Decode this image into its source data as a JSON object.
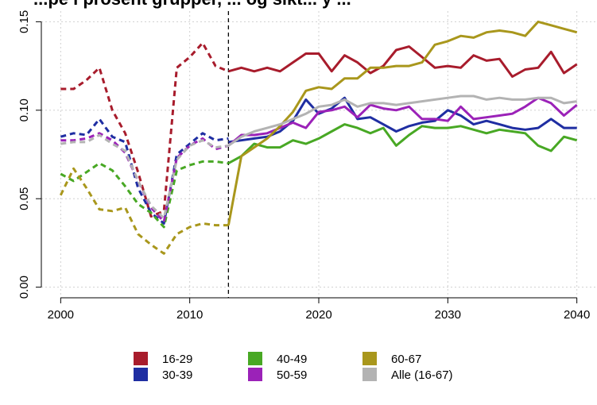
{
  "chart_data": {
    "type": "line",
    "title": "...pe i prosent grupper, ... og sikt... y ...",
    "xlabel": "",
    "ylabel": "",
    "xlim": [
      1998.5,
      2041.5
    ],
    "ylim": [
      -0.006,
      0.156
    ],
    "x_ticks": [
      2000,
      2010,
      2020,
      2030,
      2040
    ],
    "y_ticks": [
      0.0,
      0.05,
      0.1,
      0.15
    ],
    "y_tick_labels": [
      "0.00",
      "0.05",
      "0.10",
      "0.15"
    ],
    "grid": true,
    "vline_x": 2013,
    "legend_position": "bottom",
    "series": [
      {
        "name": "16-29",
        "color": "#a81c2c",
        "historical": {
          "x": [
            2000,
            2001,
            2002,
            2003,
            2004,
            2005,
            2006,
            2007,
            2008,
            2009,
            2010,
            2011,
            2012,
            2013
          ],
          "y": [
            0.112,
            0.112,
            0.117,
            0.124,
            0.1,
            0.087,
            0.065,
            0.04,
            0.043,
            0.124,
            0.13,
            0.138,
            0.125,
            0.122
          ]
        },
        "projection": {
          "x": [
            2013,
            2014,
            2015,
            2016,
            2017,
            2018,
            2019,
            2020,
            2021,
            2022,
            2023,
            2024,
            2025,
            2026,
            2027,
            2028,
            2029,
            2030,
            2031,
            2032,
            2033,
            2034,
            2035,
            2036,
            2037,
            2038,
            2039,
            2040
          ],
          "y": [
            0.122,
            0.124,
            0.122,
            0.124,
            0.122,
            0.127,
            0.132,
            0.132,
            0.122,
            0.131,
            0.127,
            0.121,
            0.125,
            0.134,
            0.136,
            0.13,
            0.124,
            0.125,
            0.124,
            0.131,
            0.128,
            0.129,
            0.119,
            0.123,
            0.124,
            0.133,
            0.121,
            0.126
          ]
        }
      },
      {
        "name": "30-39",
        "color": "#1f2ea2",
        "historical": {
          "x": [
            2000,
            2001,
            2002,
            2003,
            2004,
            2005,
            2006,
            2007,
            2008,
            2009,
            2010,
            2011,
            2012,
            2013
          ],
          "y": [
            0.085,
            0.087,
            0.086,
            0.095,
            0.085,
            0.082,
            0.056,
            0.042,
            0.036,
            0.075,
            0.081,
            0.087,
            0.083,
            0.084
          ]
        },
        "projection": {
          "x": [
            2013,
            2014,
            2015,
            2016,
            2017,
            2018,
            2019,
            2020,
            2021,
            2022,
            2023,
            2024,
            2025,
            2026,
            2027,
            2028,
            2029,
            2030,
            2031,
            2032,
            2033,
            2034,
            2035,
            2036,
            2037,
            2038,
            2039,
            2040
          ],
          "y": [
            0.082,
            0.083,
            0.084,
            0.085,
            0.088,
            0.094,
            0.106,
            0.098,
            0.101,
            0.107,
            0.095,
            0.096,
            0.092,
            0.088,
            0.091,
            0.093,
            0.094,
            0.1,
            0.097,
            0.092,
            0.094,
            0.092,
            0.09,
            0.089,
            0.09,
            0.095,
            0.09,
            0.09
          ]
        }
      },
      {
        "name": "40-49",
        "color": "#48a824",
        "historical": {
          "x": [
            2000,
            2001,
            2002,
            2003,
            2004,
            2005,
            2006,
            2007,
            2008,
            2009,
            2010,
            2011,
            2012,
            2013
          ],
          "y": [
            0.064,
            0.06,
            0.065,
            0.07,
            0.066,
            0.057,
            0.047,
            0.042,
            0.034,
            0.066,
            0.069,
            0.071,
            0.071,
            0.07
          ]
        },
        "projection": {
          "x": [
            2013,
            2014,
            2015,
            2016,
            2017,
            2018,
            2019,
            2020,
            2021,
            2022,
            2023,
            2024,
            2025,
            2026,
            2027,
            2028,
            2029,
            2030,
            2031,
            2032,
            2033,
            2034,
            2035,
            2036,
            2037,
            2038,
            2039,
            2040
          ],
          "y": [
            0.07,
            0.074,
            0.081,
            0.079,
            0.079,
            0.083,
            0.081,
            0.084,
            0.088,
            0.092,
            0.09,
            0.087,
            0.09,
            0.08,
            0.086,
            0.091,
            0.09,
            0.09,
            0.091,
            0.089,
            0.087,
            0.089,
            0.088,
            0.087,
            0.08,
            0.077,
            0.085,
            0.083
          ]
        }
      },
      {
        "name": "50-59",
        "color": "#9b22b8",
        "historical": {
          "x": [
            2000,
            2001,
            2002,
            2003,
            2004,
            2005,
            2006,
            2007,
            2008,
            2009,
            2010,
            2011,
            2012,
            2013
          ],
          "y": [
            0.083,
            0.083,
            0.084,
            0.087,
            0.083,
            0.076,
            0.06,
            0.045,
            0.037,
            0.073,
            0.08,
            0.084,
            0.078,
            0.08
          ]
        },
        "projection": {
          "x": [
            2013,
            2014,
            2015,
            2016,
            2017,
            2018,
            2019,
            2020,
            2021,
            2022,
            2023,
            2024,
            2025,
            2026,
            2027,
            2028,
            2029,
            2030,
            2031,
            2032,
            2033,
            2034,
            2035,
            2036,
            2037,
            2038,
            2039,
            2040
          ],
          "y": [
            0.08,
            0.086,
            0.086,
            0.087,
            0.09,
            0.093,
            0.09,
            0.099,
            0.1,
            0.102,
            0.096,
            0.103,
            0.101,
            0.1,
            0.102,
            0.095,
            0.095,
            0.094,
            0.102,
            0.095,
            0.096,
            0.097,
            0.098,
            0.102,
            0.107,
            0.104,
            0.097,
            0.103
          ]
        }
      },
      {
        "name": "60-67",
        "color": "#a9971c",
        "historical": {
          "x": [
            2000,
            2001,
            2002,
            2003,
            2004,
            2005,
            2006,
            2007,
            2008,
            2009,
            2010,
            2011,
            2012,
            2013
          ],
          "y": [
            0.052,
            0.067,
            0.056,
            0.044,
            0.043,
            0.045,
            0.03,
            0.024,
            0.019,
            0.03,
            0.034,
            0.036,
            0.035,
            0.035
          ]
        },
        "projection": {
          "x": [
            2013,
            2014,
            2015,
            2016,
            2017,
            2018,
            2019,
            2020,
            2021,
            2022,
            2023,
            2024,
            2025,
            2026,
            2027,
            2028,
            2029,
            2030,
            2031,
            2032,
            2033,
            2034,
            2035,
            2036,
            2037,
            2038,
            2039,
            2040
          ],
          "y": [
            0.035,
            0.074,
            0.079,
            0.084,
            0.091,
            0.099,
            0.111,
            0.113,
            0.112,
            0.118,
            0.118,
            0.124,
            0.124,
            0.125,
            0.125,
            0.127,
            0.137,
            0.139,
            0.142,
            0.141,
            0.144,
            0.145,
            0.144,
            0.142,
            0.15,
            0.148,
            0.146,
            0.144
          ]
        }
      },
      {
        "name": "Alle (16-67)",
        "color": "#b3b3b3",
        "historical": {
          "x": [
            2000,
            2001,
            2002,
            2003,
            2004,
            2005,
            2006,
            2007,
            2008,
            2009,
            2010,
            2011,
            2012,
            2013
          ],
          "y": [
            0.081,
            0.082,
            0.082,
            0.086,
            0.081,
            0.077,
            0.06,
            0.046,
            0.039,
            0.072,
            0.08,
            0.083,
            0.079,
            0.08
          ]
        },
        "projection": {
          "x": [
            2013,
            2014,
            2015,
            2016,
            2017,
            2018,
            2019,
            2020,
            2021,
            2022,
            2023,
            2024,
            2025,
            2026,
            2027,
            2028,
            2029,
            2030,
            2031,
            2032,
            2033,
            2034,
            2035,
            2036,
            2037,
            2038,
            2039,
            2040
          ],
          "y": [
            0.08,
            0.085,
            0.088,
            0.09,
            0.092,
            0.095,
            0.098,
            0.102,
            0.103,
            0.106,
            0.102,
            0.104,
            0.104,
            0.103,
            0.104,
            0.105,
            0.106,
            0.107,
            0.108,
            0.108,
            0.106,
            0.107,
            0.106,
            0.106,
            0.107,
            0.107,
            0.104,
            0.105
          ]
        }
      }
    ]
  }
}
